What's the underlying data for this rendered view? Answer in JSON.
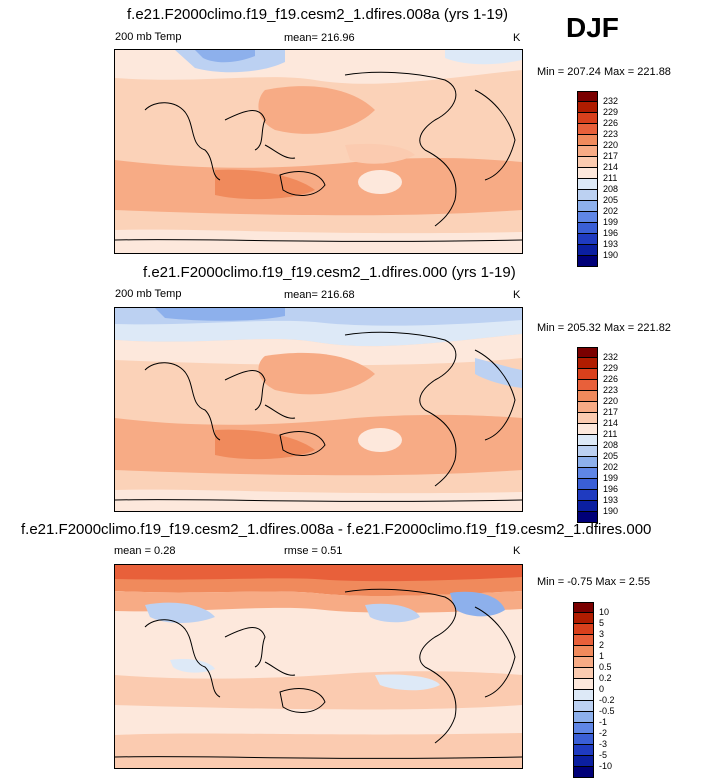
{
  "season_label": "DJF",
  "chart_data": [
    {
      "type": "heatmap",
      "title": "f.e21.F2000climo.f19_f19.cesm2_1.dfires.008a (yrs 1-19)",
      "left_label": "200 mb Temp",
      "center_label": "mean= 216.96",
      "units": "K",
      "minmax": "Min = 207.24 Max = 221.88",
      "colorbar_labels": [
        "232",
        "229",
        "226",
        "223",
        "220",
        "217",
        "214",
        "211",
        "208",
        "205",
        "202",
        "199",
        "196",
        "193",
        "190"
      ]
    },
    {
      "type": "heatmap",
      "title": "f.e21.F2000climo.f19_f19.cesm2_1.dfires.000 (yrs 1-19)",
      "left_label": "200 mb Temp",
      "center_label": "mean= 216.68",
      "units": "K",
      "minmax": "Min = 205.32 Max = 221.82",
      "colorbar_labels": [
        "232",
        "229",
        "226",
        "223",
        "220",
        "217",
        "214",
        "211",
        "208",
        "205",
        "202",
        "199",
        "196",
        "193",
        "190"
      ]
    },
    {
      "type": "heatmap",
      "title": "f.e21.F2000climo.f19_f19.cesm2_1.dfires.008a - f.e21.F2000climo.f19_f19.cesm2_1.dfires.000",
      "left_label": "mean =   0.28",
      "center_label": "rmse =   0.51",
      "units": "K",
      "minmax": "Min =  -0.75 Max =   2.55",
      "colorbar_labels": [
        "10",
        "5",
        "3",
        "2",
        "1",
        "0.5",
        "0.2",
        "0",
        "-0.2",
        "-0.5",
        "-1",
        "-2",
        "-3",
        "-5",
        "-10"
      ]
    }
  ],
  "colorbar_colors": [
    "#7a0000",
    "#b01c00",
    "#d9401c",
    "#e8603a",
    "#f08a5c",
    "#f7ab85",
    "#fbcbb0",
    "#fde8dc",
    "#dde9f7",
    "#bcd1f2",
    "#8db0ec",
    "#5f86e6",
    "#3a5fd6",
    "#1f3bc0",
    "#0b1fa0",
    "#000078"
  ]
}
